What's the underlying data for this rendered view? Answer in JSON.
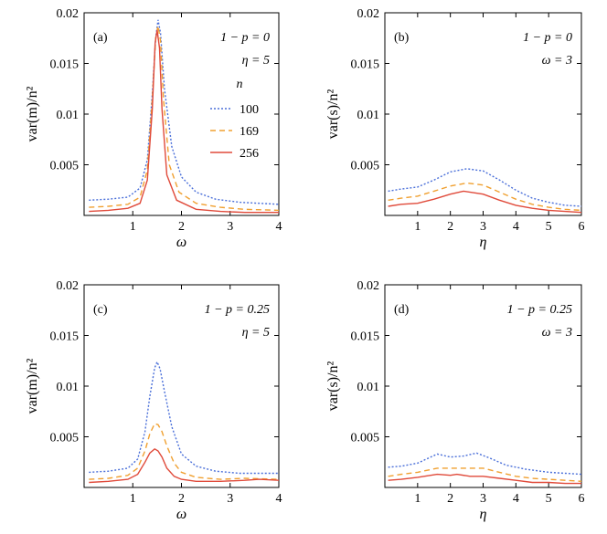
{
  "chart_data": [
    {
      "type": "line",
      "panel_label": "(a)",
      "ylabel": "var(m)/n²",
      "xlabel": "ω",
      "xlim": [
        0,
        4
      ],
      "ylim": [
        0,
        0.02
      ],
      "xticks": [
        1,
        2,
        3,
        4
      ],
      "xtick_labels": [
        "1",
        "2",
        "3",
        "4"
      ],
      "yticks": [
        0.005,
        0.01,
        0.015,
        0.02
      ],
      "ytick_labels": [
        "0.005",
        "0.01",
        "0.015",
        "0.02"
      ],
      "annotations": [
        "1 − p = 0",
        "η = 5"
      ],
      "legend": {
        "title": "n",
        "placement": "center-right",
        "entries": [
          "100",
          "169",
          "256"
        ]
      },
      "series": [
        {
          "name": "100",
          "color": "#4a6fd9",
          "dash": "2,2",
          "points": [
            [
              0.1,
              0.0015
            ],
            [
              0.5,
              0.0016
            ],
            [
              0.9,
              0.0018
            ],
            [
              1.15,
              0.0027
            ],
            [
              1.3,
              0.0055
            ],
            [
              1.4,
              0.012
            ],
            [
              1.47,
              0.0175
            ],
            [
              1.52,
              0.0193
            ],
            [
              1.57,
              0.018
            ],
            [
              1.65,
              0.0125
            ],
            [
              1.8,
              0.0068
            ],
            [
              2.0,
              0.0038
            ],
            [
              2.3,
              0.0023
            ],
            [
              2.7,
              0.0016
            ],
            [
              3.2,
              0.0013
            ],
            [
              4.0,
              0.0011
            ]
          ]
        },
        {
          "name": "169",
          "color": "#f0a030",
          "dash": "6,4",
          "points": [
            [
              0.1,
              0.0008
            ],
            [
              0.5,
              0.0009
            ],
            [
              0.9,
              0.0011
            ],
            [
              1.15,
              0.0018
            ],
            [
              1.3,
              0.0045
            ],
            [
              1.4,
              0.0115
            ],
            [
              1.47,
              0.0175
            ],
            [
              1.52,
              0.0187
            ],
            [
              1.57,
              0.0172
            ],
            [
              1.63,
              0.0115
            ],
            [
              1.75,
              0.005
            ],
            [
              1.95,
              0.0023
            ],
            [
              2.3,
              0.0012
            ],
            [
              2.8,
              0.0008
            ],
            [
              3.3,
              0.0006
            ],
            [
              4.0,
              0.0005
            ]
          ]
        },
        {
          "name": "256",
          "color": "#e04a3a",
          "dash": "",
          "points": [
            [
              0.1,
              0.0004
            ],
            [
              0.5,
              0.0005
            ],
            [
              0.9,
              0.0007
            ],
            [
              1.15,
              0.0012
            ],
            [
              1.3,
              0.0035
            ],
            [
              1.4,
              0.0105
            ],
            [
              1.46,
              0.017
            ],
            [
              1.5,
              0.0183
            ],
            [
              1.55,
              0.0165
            ],
            [
              1.6,
              0.0105
            ],
            [
              1.7,
              0.004
            ],
            [
              1.9,
              0.0015
            ],
            [
              2.3,
              0.0006
            ],
            [
              2.8,
              0.0004
            ],
            [
              3.3,
              0.0003
            ],
            [
              4.0,
              0.0003
            ]
          ]
        }
      ]
    },
    {
      "type": "line",
      "panel_label": "(b)",
      "ylabel": "var(s)/n²",
      "xlabel": "η",
      "xlim": [
        0,
        6
      ],
      "ylim": [
        0,
        0.02
      ],
      "xticks": [
        1,
        2,
        3,
        4,
        5,
        6
      ],
      "xtick_labels": [
        "1",
        "2",
        "3",
        "4",
        "5",
        "6"
      ],
      "yticks": [
        0.005,
        0.01,
        0.015,
        0.02
      ],
      "ytick_labels": [
        "0.005",
        "0.01",
        "0.015",
        "0.02"
      ],
      "annotations": [
        "1 − p = 0",
        "ω = 3"
      ],
      "series": [
        {
          "name": "100",
          "color": "#4a6fd9",
          "dash": "2,2",
          "points": [
            [
              0.1,
              0.0024
            ],
            [
              0.5,
              0.0026
            ],
            [
              1.0,
              0.0028
            ],
            [
              1.5,
              0.0035
            ],
            [
              2.0,
              0.0043
            ],
            [
              2.5,
              0.0046
            ],
            [
              3.0,
              0.0044
            ],
            [
              3.5,
              0.0035
            ],
            [
              4.0,
              0.0025
            ],
            [
              4.5,
              0.0017
            ],
            [
              5.0,
              0.0013
            ],
            [
              5.5,
              0.001
            ],
            [
              6.0,
              0.0009
            ]
          ]
        },
        {
          "name": "169",
          "color": "#f0a030",
          "dash": "6,4",
          "points": [
            [
              0.1,
              0.0015
            ],
            [
              0.5,
              0.0017
            ],
            [
              1.0,
              0.0019
            ],
            [
              1.5,
              0.0024
            ],
            [
              2.0,
              0.0029
            ],
            [
              2.5,
              0.0032
            ],
            [
              3.0,
              0.003
            ],
            [
              3.5,
              0.0023
            ],
            [
              4.0,
              0.0016
            ],
            [
              4.5,
              0.0011
            ],
            [
              5.0,
              0.0008
            ],
            [
              5.5,
              0.0006
            ],
            [
              6.0,
              0.0005
            ]
          ]
        },
        {
          "name": "256",
          "color": "#e04a3a",
          "dash": "",
          "points": [
            [
              0.1,
              0.0009
            ],
            [
              0.5,
              0.0011
            ],
            [
              1.0,
              0.0012
            ],
            [
              1.5,
              0.0016
            ],
            [
              2.0,
              0.0021
            ],
            [
              2.4,
              0.0024
            ],
            [
              3.0,
              0.0021
            ],
            [
              3.5,
              0.0015
            ],
            [
              4.0,
              0.001
            ],
            [
              4.5,
              0.0007
            ],
            [
              5.0,
              0.0005
            ],
            [
              5.5,
              0.0004
            ],
            [
              6.0,
              0.0003
            ]
          ]
        }
      ]
    },
    {
      "type": "line",
      "panel_label": "(c)",
      "ylabel": "var(m)/n²",
      "xlabel": "ω",
      "xlim": [
        0,
        4
      ],
      "ylim": [
        0,
        0.02
      ],
      "xticks": [
        1,
        2,
        3,
        4
      ],
      "xtick_labels": [
        "1",
        "2",
        "3",
        "4"
      ],
      "yticks": [
        0.005,
        0.01,
        0.015,
        0.02
      ],
      "ytick_labels": [
        "0.005",
        "0.01",
        "0.015",
        "0.02"
      ],
      "annotations": [
        "1 − p = 0.25",
        "η = 5"
      ],
      "series": [
        {
          "name": "100",
          "color": "#4a6fd9",
          "dash": "2,2",
          "points": [
            [
              0.1,
              0.0015
            ],
            [
              0.5,
              0.0016
            ],
            [
              0.9,
              0.0019
            ],
            [
              1.1,
              0.0028
            ],
            [
              1.25,
              0.0055
            ],
            [
              1.35,
              0.009
            ],
            [
              1.45,
              0.0118
            ],
            [
              1.5,
              0.0124
            ],
            [
              1.56,
              0.0117
            ],
            [
              1.65,
              0.0095
            ],
            [
              1.8,
              0.006
            ],
            [
              2.0,
              0.0033
            ],
            [
              2.3,
              0.0021
            ],
            [
              2.7,
              0.0016
            ],
            [
              3.2,
              0.0014
            ],
            [
              4.0,
              0.0014
            ]
          ]
        },
        {
          "name": "169",
          "color": "#f0a030",
          "dash": "6,4",
          "points": [
            [
              0.1,
              0.0008
            ],
            [
              0.5,
              0.0009
            ],
            [
              0.9,
              0.0012
            ],
            [
              1.1,
              0.0019
            ],
            [
              1.25,
              0.0036
            ],
            [
              1.35,
              0.0053
            ],
            [
              1.45,
              0.0063
            ],
            [
              1.52,
              0.0062
            ],
            [
              1.6,
              0.0055
            ],
            [
              1.7,
              0.0041
            ],
            [
              1.85,
              0.0024
            ],
            [
              2.0,
              0.0015
            ],
            [
              2.3,
              0.001
            ],
            [
              2.8,
              0.0008
            ],
            [
              3.3,
              0.0009
            ],
            [
              4.0,
              0.0008
            ]
          ]
        },
        {
          "name": "256",
          "color": "#e04a3a",
          "dash": "",
          "points": [
            [
              0.1,
              0.0005
            ],
            [
              0.5,
              0.0006
            ],
            [
              0.9,
              0.0008
            ],
            [
              1.1,
              0.0013
            ],
            [
              1.25,
              0.0025
            ],
            [
              1.35,
              0.0034
            ],
            [
              1.45,
              0.0038
            ],
            [
              1.52,
              0.0036
            ],
            [
              1.6,
              0.003
            ],
            [
              1.7,
              0.0019
            ],
            [
              1.85,
              0.0011
            ],
            [
              2.0,
              0.0008
            ],
            [
              2.3,
              0.0006
            ],
            [
              2.8,
              0.0006
            ],
            [
              3.3,
              0.0007
            ],
            [
              3.6,
              0.0008
            ],
            [
              4.0,
              0.0007
            ]
          ]
        }
      ]
    },
    {
      "type": "line",
      "panel_label": "(d)",
      "ylabel": "var(s)/n²",
      "xlabel": "η",
      "xlim": [
        0,
        6
      ],
      "ylim": [
        0,
        0.02
      ],
      "xticks": [
        1,
        2,
        3,
        4,
        5,
        6
      ],
      "xtick_labels": [
        "1",
        "2",
        "3",
        "4",
        "5",
        "6"
      ],
      "yticks": [
        0.005,
        0.01,
        0.015,
        0.02
      ],
      "ytick_labels": [
        "0.005",
        "0.01",
        "0.015",
        "0.02"
      ],
      "annotations": [
        "1 − p = 0.25",
        "ω = 3"
      ],
      "series": [
        {
          "name": "100",
          "color": "#4a6fd9",
          "dash": "2,2",
          "points": [
            [
              0.1,
              0.002
            ],
            [
              0.5,
              0.0021
            ],
            [
              1.0,
              0.0024
            ],
            [
              1.6,
              0.0033
            ],
            [
              2.0,
              0.003
            ],
            [
              2.4,
              0.0031
            ],
            [
              2.8,
              0.0034
            ],
            [
              3.2,
              0.0029
            ],
            [
              3.7,
              0.0022
            ],
            [
              4.3,
              0.0018
            ],
            [
              5.0,
              0.0015
            ],
            [
              5.5,
              0.0014
            ],
            [
              6.0,
              0.0013
            ]
          ]
        },
        {
          "name": "169",
          "color": "#f0a030",
          "dash": "6,4",
          "points": [
            [
              0.1,
              0.0011
            ],
            [
              0.5,
              0.0013
            ],
            [
              1.0,
              0.0015
            ],
            [
              1.6,
              0.0019
            ],
            [
              2.0,
              0.0019
            ],
            [
              2.5,
              0.0019
            ],
            [
              3.0,
              0.0019
            ],
            [
              3.5,
              0.0015
            ],
            [
              4.0,
              0.0011
            ],
            [
              4.5,
              0.0009
            ],
            [
              5.0,
              0.0008
            ],
            [
              5.5,
              0.0007
            ],
            [
              6.0,
              0.0006
            ]
          ]
        },
        {
          "name": "256",
          "color": "#e04a3a",
          "dash": "",
          "points": [
            [
              0.1,
              0.0007
            ],
            [
              0.5,
              0.0008
            ],
            [
              1.0,
              0.001
            ],
            [
              1.6,
              0.0013
            ],
            [
              2.0,
              0.0012
            ],
            [
              2.2,
              0.0013
            ],
            [
              2.6,
              0.0011
            ],
            [
              3.0,
              0.0011
            ],
            [
              3.5,
              0.0009
            ],
            [
              4.0,
              0.0007
            ],
            [
              4.5,
              0.0005
            ],
            [
              5.0,
              0.0005
            ],
            [
              5.5,
              0.0004
            ],
            [
              6.0,
              0.0004
            ]
          ]
        }
      ]
    }
  ]
}
